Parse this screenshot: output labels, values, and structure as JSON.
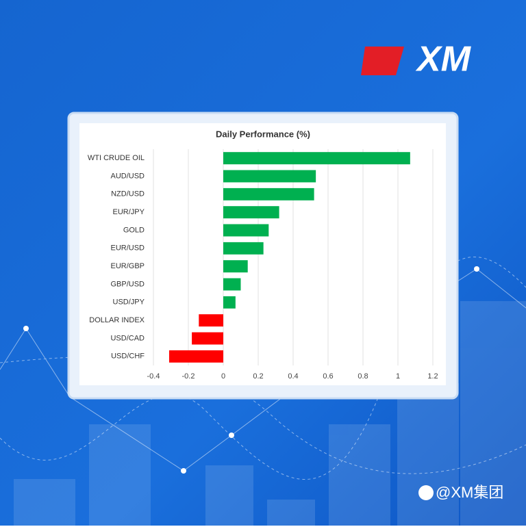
{
  "brand": {
    "logo": "XM",
    "watermark": "@XM集团"
  },
  "chart_data": {
    "type": "barh",
    "title": "Daily Performance (%)",
    "categories": [
      "WTI CRUDE OIL",
      "AUD/USD",
      "NZD/USD",
      "EUR/JPY",
      "GOLD",
      "EUR/USD",
      "EUR/GBP",
      "GBP/USD",
      "USD/JPY",
      "DOLLAR INDEX",
      "USD/CAD",
      "USD/CHF"
    ],
    "values": [
      1.07,
      0.53,
      0.52,
      0.32,
      0.26,
      0.23,
      0.14,
      0.1,
      0.07,
      -0.14,
      -0.18,
      -0.31
    ],
    "positive_color": "#00b050",
    "negative_color": "#ff0000",
    "xlim": [
      -0.4,
      1.2
    ],
    "xticks": [
      -0.4,
      -0.2,
      0,
      0.2,
      0.4,
      0.6,
      0.8,
      1,
      1.2
    ],
    "grid": true
  }
}
